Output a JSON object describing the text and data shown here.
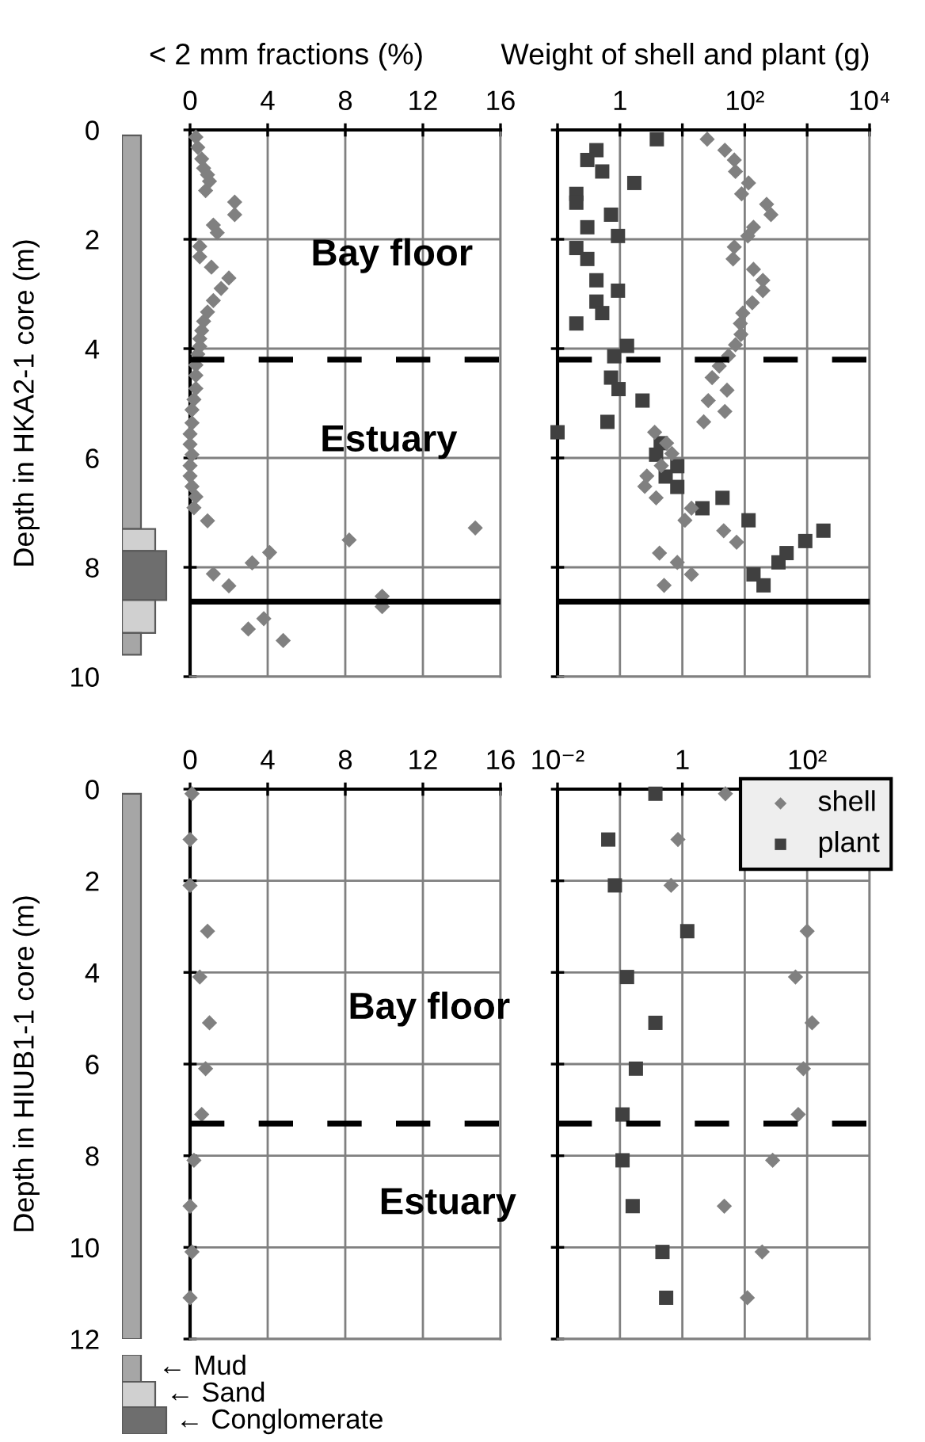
{
  "chart_data": [
    {
      "type": "scatter",
      "title": "< 2 mm fractions (%)",
      "ylabel": "Depth in HKA2-1 core (m)",
      "xlim": [
        0,
        16
      ],
      "xticks": [
        0,
        4,
        8,
        12,
        16
      ],
      "ylim": [
        10,
        0
      ],
      "yticks": [
        0,
        2,
        4,
        6,
        8,
        10
      ],
      "grid": true,
      "legend": false,
      "series": [
        {
          "color": "#808080",
          "marker": "diamond",
          "x": [
            0.3,
            0.4,
            0.6,
            0.7,
            0.9,
            1.0,
            0.8,
            2.3,
            2.3,
            1.2,
            1.4,
            0.5,
            0.5,
            1.1,
            2.0,
            1.6,
            1.2,
            0.9,
            0.7,
            0.6,
            0.5,
            0.5,
            0.4,
            0.3,
            0.3,
            0.3,
            0.2,
            0.1,
            0.1,
            0,
            0,
            0.1,
            0,
            0,
            0.1,
            0.3,
            0.2,
            0.9,
            8.2,
            14.7,
            4.1,
            3.2,
            1.2,
            2.0,
            9.9,
            9.9,
            3.8,
            3.0,
            4.8
          ],
          "values": [
            0.13,
            0.32,
            0.53,
            0.7,
            0.82,
            0.94,
            1.11,
            1.32,
            1.55,
            1.74,
            1.88,
            2.13,
            2.32,
            2.51,
            2.71,
            2.9,
            3.12,
            3.33,
            3.5,
            3.67,
            3.82,
            3.96,
            4.1,
            4.3,
            4.49,
            4.73,
            4.93,
            5.12,
            5.36,
            5.56,
            5.75,
            5.94,
            6.14,
            6.33,
            6.52,
            6.71,
            6.91,
            7.15,
            7.5,
            7.28,
            7.73,
            7.92,
            8.12,
            8.34,
            8.53,
            8.72,
            8.94,
            9.13,
            9.34
          ]
        }
      ],
      "ref_lines": [
        {
          "axis": "y",
          "value": 4.2,
          "line_style": "dashed",
          "color": "#000000"
        },
        {
          "axis": "y",
          "value": 8.63,
          "line_style": "solid",
          "color": "#000000"
        }
      ],
      "annotations": [
        "Bay floor",
        "Estuary"
      ]
    },
    {
      "type": "scatter",
      "title": "Weight of shell and plant (g)",
      "log": "x",
      "xlim": [
        0.1,
        10000
      ],
      "xticks": [
        {
          "value": 0.1,
          "label": null
        },
        1,
        {
          "value": 10,
          "label": null
        },
        {
          "value": 100,
          "label": "10²"
        },
        {
          "value": 1000,
          "label": null
        },
        {
          "value": 10000,
          "label": "10⁴"
        }
      ],
      "ylim": [
        10,
        0
      ],
      "yticks": [
        {
          "value": 0,
          "label": null
        },
        {
          "value": 2,
          "label": null
        },
        {
          "value": 4,
          "label": null
        },
        {
          "value": 6,
          "label": null
        },
        {
          "value": 8,
          "label": null
        },
        {
          "value": 10,
          "label": null
        }
      ],
      "tick_labels": "x",
      "grid": true,
      "legend": false,
      "series": [
        {
          "color": "#808080",
          "marker": "diamond",
          "x": [
            25,
            48,
            68,
            71,
            115,
            89,
            224,
            263,
            138,
            112,
            68,
            65,
            138,
            195,
            195,
            132,
            93,
            85,
            87,
            71,
            55,
            39,
            30,
            52,
            26,
            48,
            22,
            3.6,
            5.6,
            6.8,
            4.6,
            2.7,
            2.5,
            3.8,
            14,
            11,
            46,
            74,
            4.3,
            8.3,
            14,
            5.1
          ],
          "values": [
            0.17,
            0.37,
            0.55,
            0.76,
            0.97,
            1.17,
            1.36,
            1.55,
            1.78,
            1.94,
            2.14,
            2.36,
            2.55,
            2.75,
            2.94,
            3.16,
            3.35,
            3.54,
            3.74,
            3.93,
            4.13,
            4.32,
            4.53,
            4.76,
            4.95,
            5.15,
            5.34,
            5.53,
            5.73,
            5.92,
            6.14,
            6.33,
            6.52,
            6.73,
            6.92,
            7.14,
            7.33,
            7.54,
            7.74,
            7.91,
            8.13,
            8.33
          ]
        },
        {
          "color": "#404040",
          "marker": "square",
          "x": [
            3.9,
            0.42,
            0.3,
            0.52,
            1.7,
            0.2,
            0.2,
            0.72,
            0.3,
            0.93,
            0.2,
            0.3,
            0.42,
            0.93,
            0.42,
            0.52,
            0.2,
            1.3,
            0.81,
            0.72,
            0.95,
            2.3,
            0.63,
            0.1,
            4.5,
            3.8,
            8.3,
            5.4,
            8.3,
            44,
            21,
            115,
            1820,
            933,
            468,
            347,
            138,
            200
          ],
          "values": [
            0.17,
            0.37,
            0.55,
            0.76,
            0.97,
            1.17,
            1.33,
            1.55,
            1.78,
            1.94,
            2.16,
            2.36,
            2.75,
            2.94,
            3.14,
            3.35,
            3.54,
            3.95,
            4.14,
            4.53,
            4.74,
            4.95,
            5.34,
            5.53,
            5.73,
            5.94,
            6.15,
            6.34,
            6.53,
            6.73,
            6.92,
            7.14,
            7.33,
            7.52,
            7.74,
            7.91,
            8.13,
            8.33
          ]
        }
      ],
      "ref_lines": [
        {
          "axis": "y",
          "value": 4.2,
          "line_style": "dashed",
          "color": "#000000"
        },
        {
          "axis": "y",
          "value": 8.63,
          "line_style": "solid",
          "color": "#000000"
        }
      ]
    },
    {
      "type": "scatter",
      "ylabel": "Depth in HIUB1-1 core (m)",
      "xlim": [
        0,
        16
      ],
      "xticks": [
        0,
        4,
        8,
        12,
        16
      ],
      "ylim": [
        12,
        0
      ],
      "yticks": [
        0,
        2,
        4,
        6,
        8,
        10,
        12
      ],
      "grid": true,
      "legend": false,
      "series": [
        {
          "color": "#808080",
          "marker": "diamond",
          "x": [
            0.1,
            0,
            0,
            0.9,
            0.5,
            1.0,
            0.8,
            0.6,
            0.2,
            0,
            0.1,
            0
          ],
          "values": [
            0.1,
            1.1,
            2.1,
            3.1,
            4.1,
            5.1,
            6.1,
            7.1,
            8.1,
            9.1,
            10.1,
            11.1
          ]
        }
      ],
      "ref_lines": [
        {
          "axis": "y",
          "value": 7.3,
          "line_style": "dashed",
          "color": "#000000"
        }
      ],
      "annotations": [
        "Bay floor",
        "Estuary",
        "← Mud",
        "← Sand",
        "← Conglomerate"
      ]
    },
    {
      "type": "scatter",
      "log": "x",
      "xlim": [
        0.01,
        1000
      ],
      "xticks": [
        {
          "value": 0.01,
          "label": "10⁻²"
        },
        {
          "value": 0.1,
          "label": null
        },
        1,
        {
          "value": 10,
          "label": null
        },
        {
          "value": 100,
          "label": "10²"
        },
        {
          "value": 1000,
          "label": null
        }
      ],
      "ylim": [
        12,
        0
      ],
      "yticks": [
        {
          "value": 0,
          "label": null
        },
        {
          "value": 2,
          "label": null
        },
        {
          "value": 4,
          "label": null
        },
        {
          "value": 6,
          "label": null
        },
        {
          "value": 8,
          "label": null
        },
        {
          "value": 10,
          "label": null
        },
        {
          "value": 12,
          "label": null
        }
      ],
      "tick_labels": "x",
      "grid": true,
      "legend": "top right",
      "series": [
        {
          "name": "shell",
          "color": "#808080",
          "marker": "diamond",
          "x": [
            4.9,
            0.85,
            0.66,
            100,
            65,
            120,
            87,
            72,
            28,
            4.7,
            19,
            11
          ],
          "values": [
            0.1,
            1.1,
            2.1,
            3.1,
            4.1,
            5.1,
            6.1,
            7.1,
            8.1,
            9.1,
            10.1,
            11.1
          ]
        },
        {
          "name": "plant",
          "color": "#404040",
          "marker": "square",
          "x": [
            0.37,
            0.065,
            0.083,
            1.2,
            0.13,
            0.37,
            0.18,
            0.11,
            0.11,
            0.16,
            0.48,
            0.55
          ],
          "values": [
            0.1,
            1.1,
            2.1,
            3.1,
            4.1,
            5.1,
            6.1,
            7.1,
            8.1,
            9.1,
            10.1,
            11.1
          ]
        }
      ],
      "ref_lines": [
        {
          "axis": "y",
          "value": 7.3,
          "line_style": "dashed",
          "color": "#000000"
        }
      ]
    }
  ]
}
